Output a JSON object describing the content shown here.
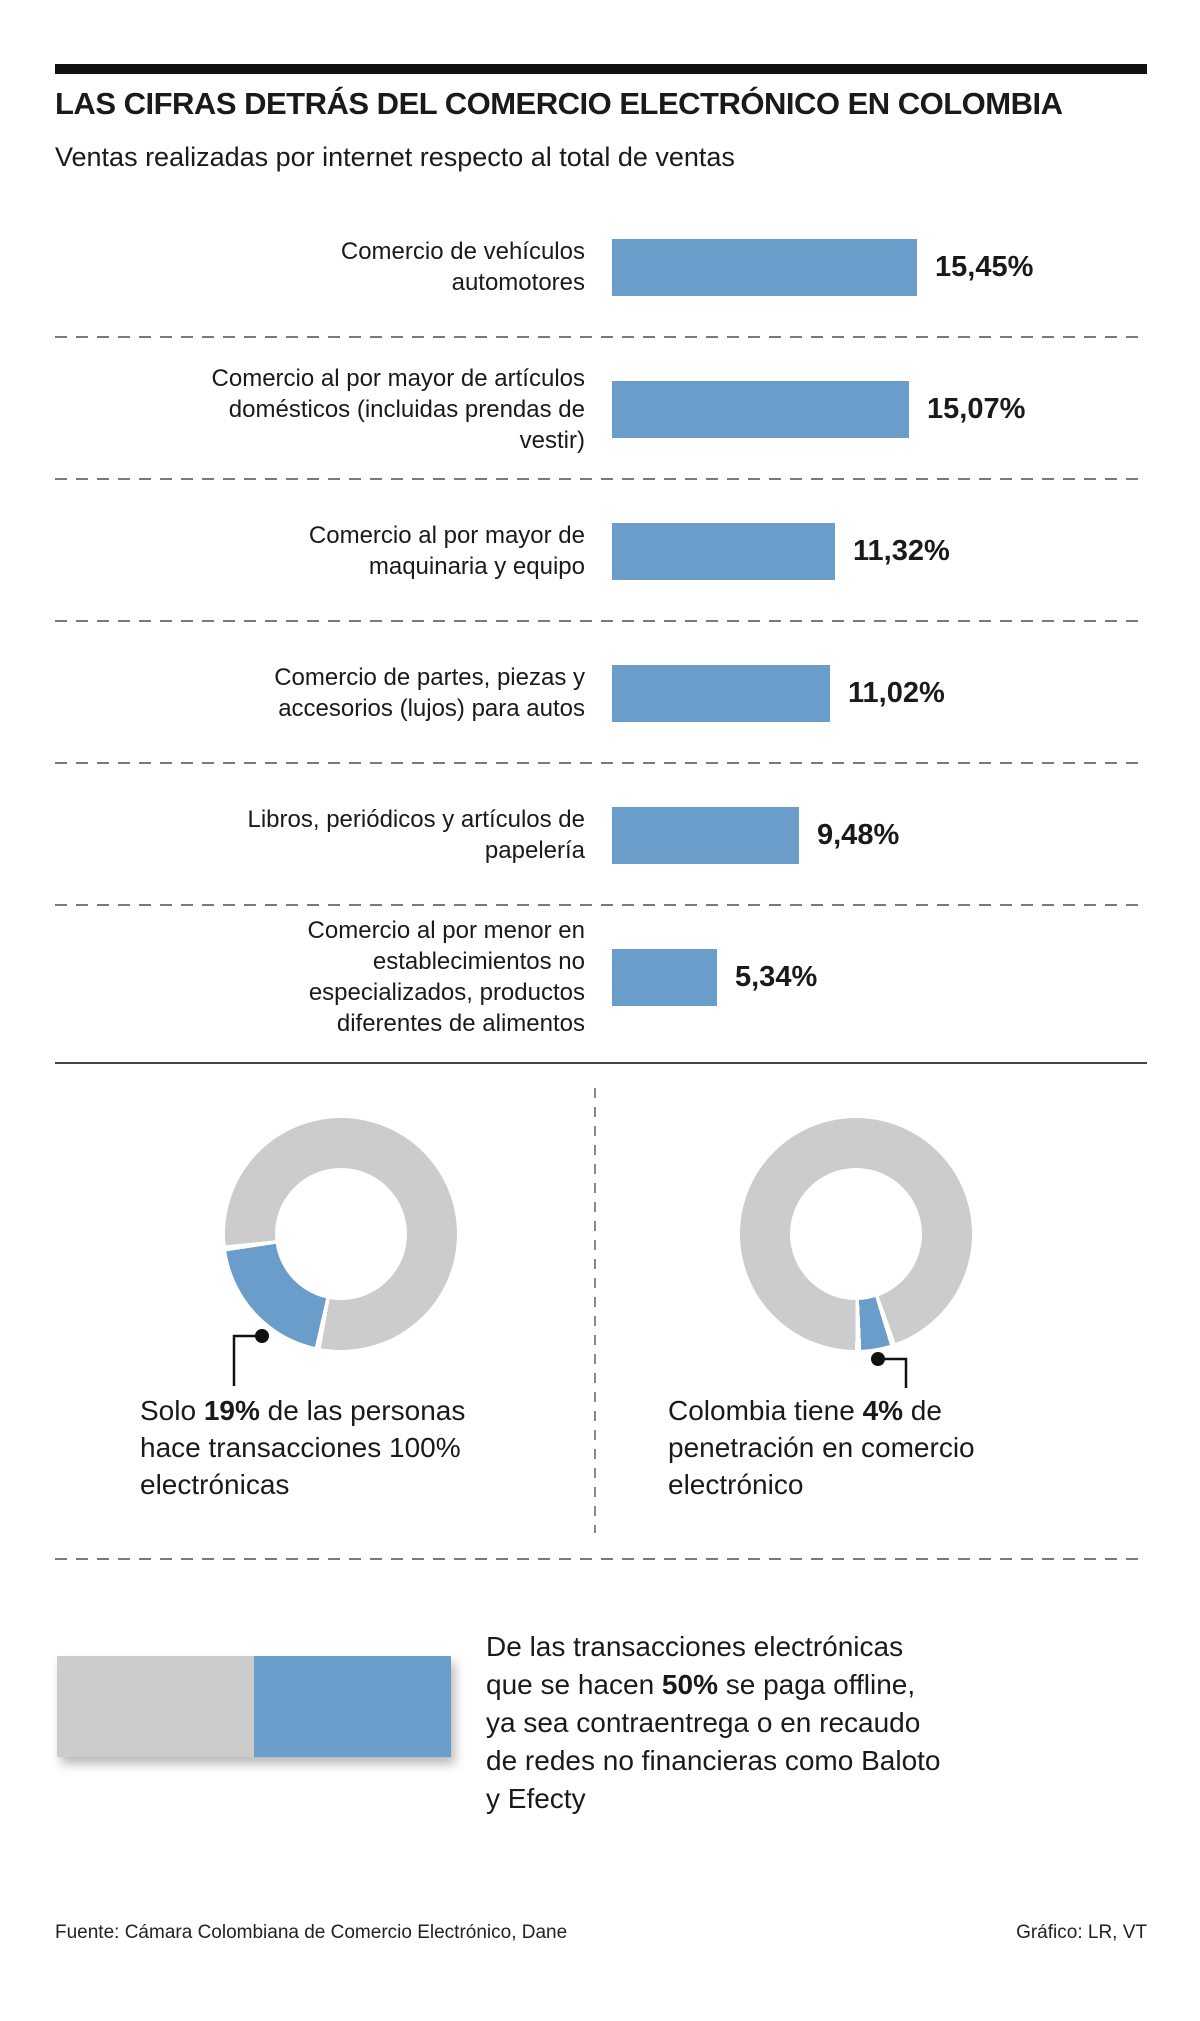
{
  "colors": {
    "accent_blue": "#6b9dcb",
    "neutral_gray": "#cccccc",
    "rule_black": "#111111",
    "text": "#1a1a1a"
  },
  "header": {
    "title": "LAS CIFRAS DETRÁS DEL COMERCIO ELECTRÓNICO EN COLOMBIA",
    "subtitle": "Ventas realizadas por internet respecto al total de ventas"
  },
  "chart_data": [
    {
      "type": "bar",
      "orientation": "horizontal",
      "title": "Ventas realizadas por internet respecto al total de ventas",
      "categories": [
        "Comercio de vehículos automotores",
        "Comercio al por mayor de artículos domésticos (incluidas prendas de vestir)",
        "Comercio al por mayor de maquinaria y equipo",
        "Comercio de partes, piezas y accesorios (lujos) para autos",
        "Libros, periódicos y artículos de papelería",
        "Comercio al por menor en establecimientos no especializados, productos diferentes de alimentos"
      ],
      "values": [
        15.45,
        15.07,
        11.32,
        11.02,
        9.48,
        5.34
      ],
      "value_labels": [
        "15,45%",
        "15,07%",
        "11,32%",
        "11,02%",
        "9,48%",
        "5,34%"
      ],
      "unit": "%",
      "xlim": [
        0,
        15.45
      ],
      "grid": false,
      "bar_color": "#6b9dcb"
    },
    {
      "type": "pie",
      "subtype": "donut",
      "values": [
        19,
        81
      ],
      "highlight_value_label": "19%",
      "annotation": "Solo 19% de las personas hace transacciones 100% electrónicas",
      "colors": [
        "#6b9dcb",
        "#cccccc"
      ]
    },
    {
      "type": "pie",
      "subtype": "donut",
      "values": [
        4,
        96
      ],
      "highlight_value_label": "4%",
      "annotation": "Colombia tiene 4% de penetración en comercio electrónico",
      "colors": [
        "#6b9dcb",
        "#cccccc"
      ]
    },
    {
      "type": "bar",
      "subtype": "stacked-100",
      "values": [
        50,
        50
      ],
      "highlight_value_label": "50%",
      "annotation": "De las transacciones electrónicas que se hacen 50% se paga offline, ya sea contraentrega o en recaudo de redes no financieras como Baloto y Efecty",
      "colors": [
        "#cccccc",
        "#6b9dcb"
      ]
    }
  ],
  "donut_left_caption": {
    "prefix": "Solo ",
    "bold": "19%",
    "suffix": " de las personas hace transacciones 100% electrónicas"
  },
  "donut_right_caption": {
    "prefix": "Colombia tiene ",
    "bold": "4%",
    "suffix": " de penetración en comercio electrónico"
  },
  "offline_caption": {
    "prefix": "De las transacciones electrónicas que se hacen ",
    "bold": "50%",
    "suffix": " se paga offline, ya sea contraentrega o en recaudo de redes no financieras como Baloto y Efecty"
  },
  "footer": {
    "source": "Fuente: Cámara Colombiana de Comercio Electrónico, Dane",
    "credit": "Gráfico: LR, VT"
  }
}
